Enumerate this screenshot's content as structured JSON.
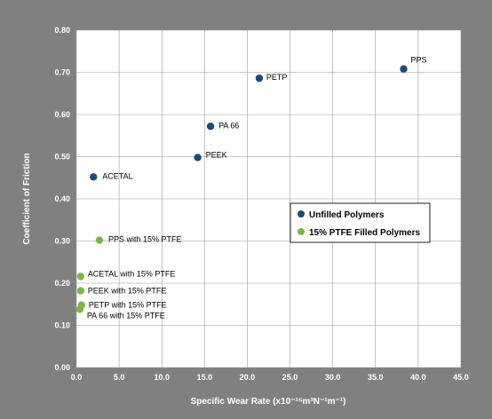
{
  "chart_data": {
    "type": "scatter",
    "title": "",
    "xlabel": "Specific Wear Rate (x10⁻¹⁵m³N⁻¹m⁻¹)",
    "ylabel": "Coefficient of Friction",
    "xlim": [
      0,
      45
    ],
    "ylim": [
      0,
      0.8
    ],
    "x_ticks": [
      "0.0",
      "5.0",
      "10.0",
      "15.0",
      "20.0",
      "25.0",
      "30.0",
      "35.0",
      "40.0",
      "45.0"
    ],
    "y_ticks": [
      "0.00",
      "0.10",
      "0.20",
      "0.30",
      "0.40",
      "0.50",
      "0.60",
      "0.70",
      "0.80"
    ],
    "grid": true,
    "legend_position": "center-right",
    "series": [
      {
        "name": "Unfilled Polymers",
        "color": "#1a4a7a",
        "points": [
          {
            "label": "PPS",
            "x": 38.3,
            "y": 0.708
          },
          {
            "label": "PETP",
            "x": 21.4,
            "y": 0.686
          },
          {
            "label": "PA 66",
            "x": 15.7,
            "y": 0.572
          },
          {
            "label": "PEEK",
            "x": 14.2,
            "y": 0.498
          },
          {
            "label": "ACETAL",
            "x": 2.0,
            "y": 0.452
          }
        ]
      },
      {
        "name": "15% PTFE Filled Polymers",
        "color": "#7ab648",
        "points": [
          {
            "label": "PPS with 15% PTFE",
            "x": 2.7,
            "y": 0.302
          },
          {
            "label": "ACETAL with 15% PTFE",
            "x": 0.5,
            "y": 0.216
          },
          {
            "label": "PEEK with 15% PTFE",
            "x": 0.5,
            "y": 0.182
          },
          {
            "label": "PETP with 15% PTFE",
            "x": 0.6,
            "y": 0.148
          },
          {
            "label": "PA 66 with 15% PTFE",
            "x": 0.4,
            "y": 0.138
          }
        ]
      }
    ]
  }
}
